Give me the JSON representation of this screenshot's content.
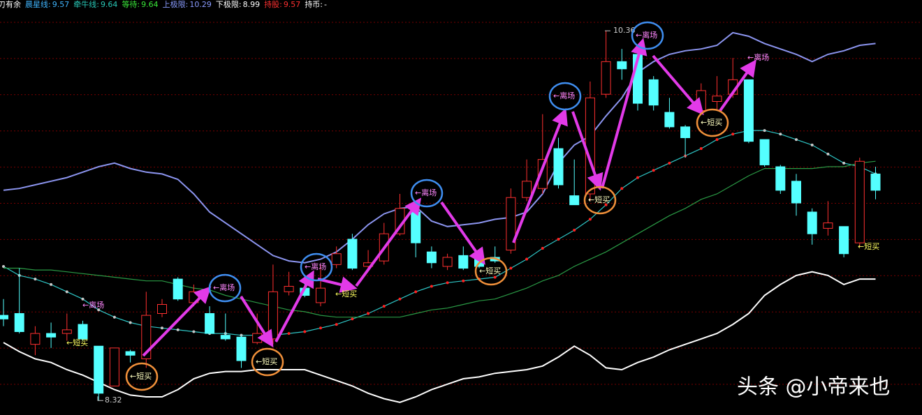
{
  "header": {
    "title": "游刃有余",
    "indicators": [
      {
        "label": "晨星线:",
        "value": 9.57,
        "color": "#3fb6ff"
      },
      {
        "label": "牵牛线:",
        "value": 9.64,
        "color": "#29c9b8"
      },
      {
        "label": "等待:",
        "value": 9.64,
        "color": "#39e639"
      },
      {
        "label": "上极限:",
        "value": 10.29,
        "color": "#8a9cff"
      },
      {
        "label": "下极限:",
        "value": 8.99,
        "color": "#ffffff"
      },
      {
        "label": "持股:",
        "value": 9.57,
        "color": "#ff3030"
      },
      {
        "label": "持币:",
        "value": "-",
        "color": "#ffffff"
      }
    ]
  },
  "chart_data": {
    "type": "candlestick",
    "open": [
      8.79,
      8.8,
      8.63,
      8.69,
      8.69,
      8.74,
      8.62,
      8.4,
      8.59,
      8.55,
      8.8,
      8.99,
      8.86,
      8.8,
      8.68,
      8.67,
      8.64,
      8.66,
      8.92,
      8.94,
      8.86,
      9.07,
      9.21,
      9.06,
      9.09,
      9.24,
      9.36,
      9.14,
      9.06,
      9.12,
      9.1,
      9.11,
      9.15,
      9.44,
      9.49,
      9.71,
      9.45,
      9.46,
      10.01,
      10.19,
      10.23,
      10.09,
      9.91,
      9.83,
      9.92,
      9.97,
      10.01,
      10.09,
      9.76,
      9.61,
      9.53,
      9.36,
      9.27,
      9.28,
      9.19,
      9.57
    ],
    "high": [
      8.88,
      9.05,
      8.73,
      8.75,
      8.8,
      8.76,
      8.62,
      8.61,
      8.6,
      8.92,
      8.88,
      9.0,
      8.96,
      8.84,
      8.8,
      8.68,
      8.8,
      9.07,
      9.03,
      9.01,
      9.07,
      9.17,
      9.24,
      9.15,
      9.3,
      9.46,
      9.39,
      9.17,
      9.13,
      9.17,
      9.15,
      9.17,
      9.49,
      9.65,
      9.9,
      9.77,
      9.65,
      10.08,
      10.36,
      10.26,
      10.26,
      10.11,
      9.99,
      9.84,
      10.07,
      10.11,
      10.21,
      10.09,
      9.76,
      9.62,
      9.57,
      9.38,
      9.42,
      9.28,
      9.66,
      9.61
    ],
    "low": [
      8.73,
      8.69,
      8.57,
      8.61,
      8.65,
      8.65,
      8.32,
      8.4,
      8.53,
      8.5,
      8.78,
      8.87,
      8.84,
      8.69,
      8.65,
      8.5,
      8.63,
      8.63,
      8.9,
      8.89,
      8.84,
      9.05,
      9.04,
      9.05,
      9.07,
      9.23,
      9.11,
      9.05,
      9.04,
      9.04,
      9.05,
      9.08,
      9.13,
      9.42,
      9.46,
      9.49,
      9.4,
      9.42,
      9.99,
      10.09,
      9.92,
      9.92,
      9.82,
      9.66,
      9.9,
      9.92,
      9.99,
      9.74,
      9.61,
      9.46,
      9.34,
      9.18,
      9.23,
      9.11,
      9.17,
      9.43
    ],
    "close": [
      8.77,
      8.7,
      8.69,
      8.67,
      8.71,
      8.66,
      8.36,
      8.61,
      8.57,
      8.79,
      8.85,
      8.88,
      8.92,
      8.69,
      8.66,
      8.54,
      8.69,
      8.92,
      8.95,
      8.9,
      8.94,
      9.13,
      9.05,
      9.08,
      9.24,
      9.38,
      9.19,
      9.08,
      9.11,
      9.05,
      9.06,
      9.09,
      9.44,
      9.53,
      9.65,
      9.51,
      9.4,
      9.99,
      10.19,
      10.15,
      9.96,
      9.95,
      9.83,
      9.77,
      10.03,
      10.0,
      10.09,
      9.75,
      9.62,
      9.48,
      9.41,
      9.24,
      9.3,
      9.13,
      9.64,
      9.48
    ],
    "up_color": "#ff3030",
    "down_color": "#54ffff",
    "series": [
      {
        "color": "#8c95f0",
        "values": [
          9.48,
          9.49,
          9.51,
          9.53,
          9.55,
          9.58,
          9.61,
          9.63,
          9.6,
          9.58,
          9.57,
          9.54,
          9.46,
          9.36,
          9.3,
          9.24,
          9.18,
          9.12,
          9.09,
          9.08,
          9.1,
          9.14,
          9.21,
          9.29,
          9.35,
          9.38,
          9.39,
          9.31,
          9.28,
          9.29,
          9.3,
          9.32,
          9.33,
          9.36,
          9.46,
          9.63,
          9.73,
          9.78,
          9.89,
          9.99,
          10.13,
          10.19,
          10.23,
          10.25,
          10.26,
          10.28,
          10.35,
          10.33,
          10.29,
          10.26,
          10.23,
          10.19,
          10.23,
          10.25,
          10.28,
          10.29
        ]
      },
      {
        "color": "#ffffff",
        "values": [
          8.64,
          8.59,
          8.55,
          8.53,
          8.49,
          8.46,
          8.42,
          8.38,
          8.35,
          8.34,
          8.34,
          8.38,
          8.44,
          8.47,
          8.48,
          8.48,
          8.49,
          8.49,
          8.49,
          8.49,
          8.46,
          8.43,
          8.4,
          8.36,
          8.33,
          8.31,
          8.34,
          8.38,
          8.41,
          8.44,
          8.45,
          8.47,
          8.48,
          8.49,
          8.51,
          8.56,
          8.62,
          8.57,
          8.5,
          8.49,
          8.53,
          8.56,
          8.6,
          8.63,
          8.66,
          8.69,
          8.74,
          8.8,
          8.9,
          8.96,
          9.01,
          9.03,
          9.01,
          8.96,
          8.99,
          8.99
        ]
      },
      {
        "color": "#2ec6c6",
        "dots": true,
        "values": [
          9.06,
          9.01,
          8.99,
          8.96,
          8.92,
          8.88,
          8.82,
          8.78,
          8.75,
          8.73,
          8.72,
          8.71,
          8.7,
          8.69,
          8.69,
          8.68,
          8.68,
          8.68,
          8.69,
          8.7,
          8.72,
          8.74,
          8.77,
          8.8,
          8.84,
          8.88,
          8.92,
          8.95,
          8.97,
          8.98,
          8.99,
          9.0,
          9.05,
          9.1,
          9.16,
          9.21,
          9.26,
          9.32,
          9.4,
          9.49,
          9.55,
          9.59,
          9.63,
          9.67,
          9.71,
          9.76,
          9.79,
          9.81,
          9.81,
          9.79,
          9.76,
          9.73,
          9.68,
          9.63,
          9.61,
          9.57
        ]
      },
      {
        "color": "#2a9a45",
        "values": [
          9.05,
          9.05,
          9.04,
          9.04,
          9.03,
          9.02,
          9.01,
          9.0,
          8.99,
          8.98,
          8.98,
          8.96,
          8.94,
          8.93,
          8.9,
          8.88,
          8.86,
          8.84,
          8.82,
          8.81,
          8.79,
          8.78,
          8.78,
          8.78,
          8.78,
          8.78,
          8.8,
          8.82,
          8.83,
          8.85,
          8.87,
          8.88,
          8.91,
          8.94,
          8.98,
          9.01,
          9.06,
          9.1,
          9.14,
          9.19,
          9.24,
          9.29,
          9.34,
          9.38,
          9.43,
          9.46,
          9.51,
          9.56,
          9.6,
          9.6,
          9.6,
          9.6,
          9.61,
          9.61,
          9.63,
          9.64
        ]
      }
    ],
    "ylim": [
      8.24,
      10.53
    ],
    "grid": true,
    "high_label": 10.36,
    "low_label": 8.32,
    "annotations": [
      "←离场",
      "←短买",
      "←短买",
      "←离场",
      "←短买",
      "←离场",
      "←短买",
      "←离场",
      "←短买",
      "←离场",
      "←短买",
      "←离场",
      "←短买",
      "←离场",
      "←短买"
    ],
    "watermark": "头条 @小帝来也"
  }
}
